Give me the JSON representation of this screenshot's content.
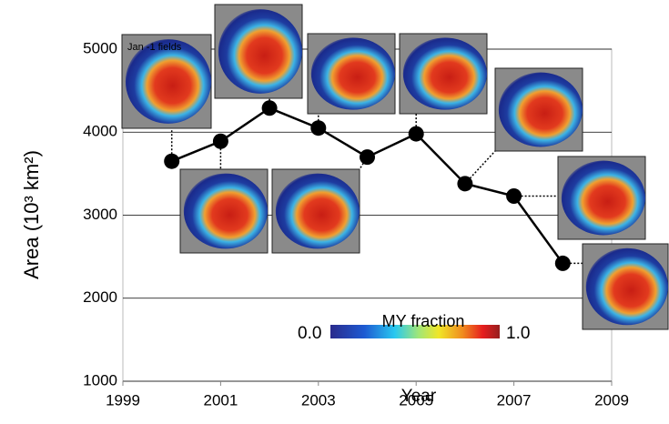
{
  "chart_data": {
    "type": "line",
    "x": [
      2000,
      2001,
      2002,
      2003,
      2004,
      2005,
      2006,
      2007,
      2008
    ],
    "series": [
      {
        "color": "#000000",
        "values": [
          3650,
          3890,
          4290,
          4050,
          3700,
          3980,
          3380,
          3230,
          2420
        ]
      }
    ],
    "xlim": [
      1999,
      2009
    ],
    "xticks": [
      1999,
      2001,
      2003,
      2005,
      2007,
      2009
    ],
    "ylim": [
      1000,
      5000
    ],
    "yticks": [
      1000,
      2000,
      3000,
      4000,
      5000
    ],
    "grid": true,
    "x_label": "Year",
    "y_label": "Area (10³ km²)",
    "inset_label": "Jan -1 fields",
    "colorbar": {
      "label": "MY fraction",
      "min_label": "0.0",
      "max_label": "1.0"
    }
  }
}
